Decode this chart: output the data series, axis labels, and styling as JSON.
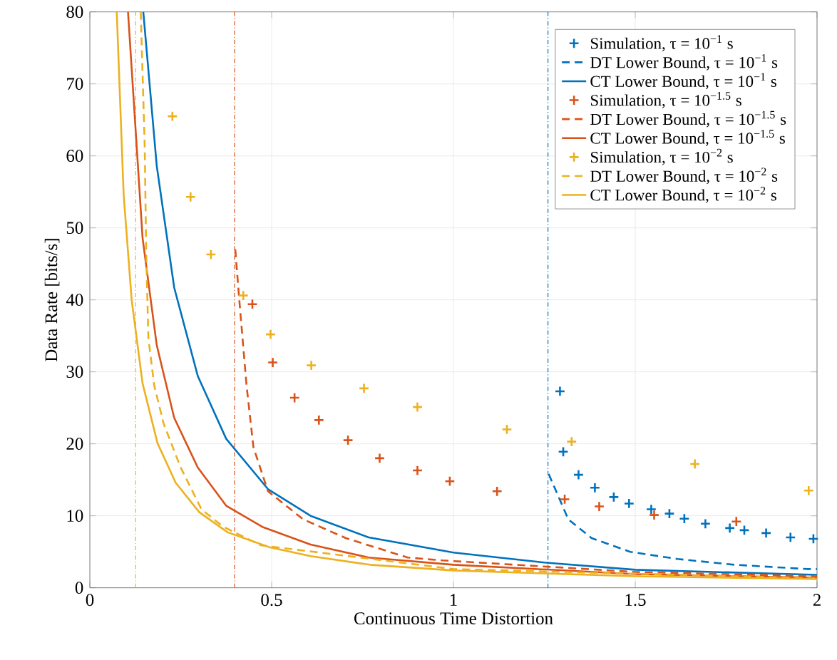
{
  "chart_data": {
    "type": "line",
    "xlabel": "Continuous Time Distortion",
    "ylabel": "Data Rate [bits/s]",
    "xlim": [
      0,
      2
    ],
    "ylim": [
      0,
      80
    ],
    "xticks": [
      0,
      0.5,
      1,
      1.5,
      2
    ],
    "yticks": [
      0,
      10,
      20,
      30,
      40,
      50,
      60,
      70,
      80
    ],
    "grid": true,
    "legend": "top right",
    "series": [
      {
        "name": "Simulation, τ = 10$^{−1}$ s",
        "type": "scatter",
        "marker": "cross",
        "color": "#0072bd",
        "x": [
          1.293,
          1.302,
          1.344,
          1.389,
          1.441,
          1.483,
          1.544,
          1.594,
          1.635,
          1.693,
          1.76,
          1.8,
          1.86,
          1.927,
          1.99
        ],
        "values": [
          27.3,
          18.9,
          15.7,
          13.9,
          12.6,
          11.7,
          10.9,
          10.3,
          9.6,
          8.9,
          8.3,
          8.0,
          7.6,
          7.0,
          6.8
        ]
      },
      {
        "name": "DT Lower Bound, τ = 10$^{−1}$ s",
        "line_style": "dashed",
        "color": "#0072bd",
        "x": [
          1.262,
          1.316,
          1.38,
          1.486,
          1.616,
          1.772,
          1.974,
          2.0
        ],
        "values": [
          15.8,
          9.5,
          6.9,
          5.0,
          4.0,
          3.2,
          2.6,
          2.6
        ]
      },
      {
        "name": "CT Lower Bound, τ = 10$^{−1}$ s",
        "line_style": "solid",
        "color": "#0072bd",
        "x": [
          0.147,
          0.184,
          0.232,
          0.297,
          0.375,
          0.49,
          0.607,
          0.767,
          1.0,
          1.25,
          1.5,
          2.0
        ],
        "values": [
          80,
          58.6,
          41.7,
          29.4,
          20.7,
          13.7,
          10.0,
          7.0,
          4.9,
          3.5,
          2.5,
          1.8
        ]
      },
      {
        "name": "Simulation, τ = 10$^{−1.5}$ s",
        "type": "scatter",
        "marker": "cross",
        "color": "#d95319",
        "x": [
          0.447,
          0.503,
          0.563,
          0.63,
          0.71,
          0.797,
          0.901,
          0.99,
          1.12,
          1.306,
          1.401,
          1.552,
          1.778
        ],
        "values": [
          39.4,
          31.3,
          26.4,
          23.3,
          20.5,
          18.0,
          16.3,
          14.8,
          13.4,
          12.3,
          11.3,
          10.1,
          9.2
        ]
      },
      {
        "name": "DT Lower Bound, τ = 10$^{−1.5}$ s",
        "line_style": "dashed",
        "color": "#d95319",
        "x": [
          0.4,
          0.411,
          0.431,
          0.45,
          0.49,
          0.587,
          0.704,
          0.874,
          0.97,
          1.5,
          2.0
        ],
        "values": [
          47.0,
          40.0,
          28.1,
          19.5,
          13.4,
          9.5,
          6.9,
          4.2,
          3.8,
          2.2,
          1.6
        ]
      },
      {
        "name": "CT Lower Bound, τ = 10$^{−1.5}$ s",
        "line_style": "solid",
        "color": "#d95319",
        "x": [
          0.105,
          0.145,
          0.184,
          0.232,
          0.297,
          0.375,
          0.477,
          0.607,
          0.767,
          1.0,
          1.5,
          2.0
        ],
        "values": [
          80,
          48.6,
          33.7,
          23.6,
          16.7,
          11.4,
          8.4,
          6.0,
          4.2,
          3.2,
          1.9,
          1.4
        ]
      },
      {
        "name": "Simulation, τ = 10$^{−2}$ s",
        "type": "scatter",
        "marker": "cross",
        "color": "#edb120",
        "x": [
          0.227,
          0.277,
          0.333,
          0.422,
          0.497,
          0.609,
          0.754,
          0.901,
          1.147,
          1.325,
          1.664,
          1.977
        ],
        "values": [
          65.5,
          54.3,
          46.3,
          40.6,
          35.2,
          30.9,
          27.7,
          25.1,
          22.0,
          20.3,
          17.2,
          13.5
        ]
      },
      {
        "name": "DT Lower Bound, τ = 10$^{−2}$ s",
        "line_style": "dashed",
        "color": "#edb120",
        "x": [
          0.14,
          0.151,
          0.155,
          0.161,
          0.177,
          0.203,
          0.249,
          0.307,
          0.366,
          0.47,
          1.0,
          2.0
        ],
        "values": [
          80,
          61.2,
          46.7,
          34.7,
          28.1,
          22.8,
          16.8,
          10.9,
          8.5,
          5.9,
          2.6,
          1.3
        ]
      },
      {
        "name": "CT Lower Bound, τ = 10$^{−2}$ s",
        "line_style": "solid",
        "color": "#edb120",
        "x": [
          0.074,
          0.093,
          0.115,
          0.145,
          0.186,
          0.236,
          0.301,
          0.379,
          0.496,
          0.607,
          0.77,
          1.0,
          1.5,
          2.0
        ],
        "values": [
          80,
          54.6,
          40.0,
          28.4,
          20.1,
          14.6,
          10.5,
          7.7,
          5.6,
          4.4,
          3.2,
          2.4,
          1.6,
          1.2
        ]
      }
    ],
    "ref_lines": [
      {
        "axis": "x",
        "value": 0.126,
        "color": "#edb120"
      },
      {
        "axis": "x",
        "value": 0.398,
        "color": "#d95319"
      },
      {
        "axis": "x",
        "value": 1.26,
        "color": "#0072bd"
      }
    ]
  }
}
